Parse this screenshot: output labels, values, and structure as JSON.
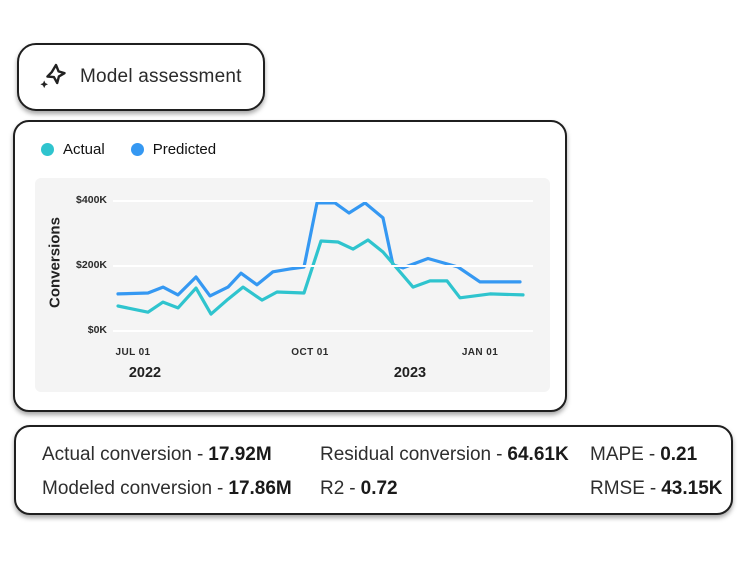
{
  "header": {
    "title": "Model assessment",
    "icon": "sparkle-icon"
  },
  "chart_card": {
    "legend": [
      {
        "label": "Actual",
        "color": "#2FC4CE"
      },
      {
        "label": "Predicted",
        "color": "#3598F2"
      }
    ]
  },
  "chart_data": {
    "type": "line",
    "title": "Model assessment",
    "xlabel": "",
    "ylabel": "Conversions",
    "ylim_k": [
      0,
      470
    ],
    "grid": "horizontal",
    "legend_position": "top-left",
    "y_ticks": [
      {
        "label": "$0K",
        "value": 0
      },
      {
        "label": "$200K",
        "value": 200
      },
      {
        "label": "$400K",
        "value": 400
      }
    ],
    "x_ticks": [
      {
        "label": "JUL 01",
        "x": 98
      },
      {
        "label": "OCT 01",
        "x": 275
      },
      {
        "label": "JAN 01",
        "x": 445
      }
    ],
    "year_labels": [
      {
        "label": "2022",
        "x": 110
      },
      {
        "label": "2023",
        "x": 375
      }
    ],
    "x_unit": "px-weekly-from-late-jun-2022",
    "y_unit": "conversions-in-$K",
    "series": [
      {
        "name": "Predicted",
        "color": "#3598F2",
        "points": [
          [
            83,
            114
          ],
          [
            113,
            117
          ],
          [
            128,
            135
          ],
          [
            143,
            111
          ],
          [
            161,
            166
          ],
          [
            175,
            108
          ],
          [
            193,
            135
          ],
          [
            206,
            178
          ],
          [
            222,
            142
          ],
          [
            238,
            182
          ],
          [
            255,
            191
          ],
          [
            269,
            197
          ],
          [
            282,
            394
          ],
          [
            300,
            394
          ],
          [
            314,
            363
          ],
          [
            330,
            394
          ],
          [
            348,
            348
          ],
          [
            358,
            203
          ],
          [
            368,
            194
          ],
          [
            393,
            223
          ],
          [
            423,
            197
          ],
          [
            445,
            151
          ],
          [
            485,
            151
          ]
        ]
      },
      {
        "name": "Actual",
        "color": "#2FC4CE",
        "points": [
          [
            83,
            77
          ],
          [
            113,
            58
          ],
          [
            128,
            89
          ],
          [
            143,
            71
          ],
          [
            161,
            132
          ],
          [
            176,
            52
          ],
          [
            193,
            98
          ],
          [
            208,
            135
          ],
          [
            227,
            95
          ],
          [
            242,
            120
          ],
          [
            269,
            117
          ],
          [
            286,
            277
          ],
          [
            303,
            274
          ],
          [
            318,
            252
          ],
          [
            333,
            280
          ],
          [
            348,
            243
          ],
          [
            378,
            135
          ],
          [
            395,
            154
          ],
          [
            412,
            154
          ],
          [
            425,
            102
          ],
          [
            455,
            114
          ],
          [
            488,
            111
          ]
        ]
      }
    ]
  },
  "metrics": {
    "sep": "-",
    "items": [
      {
        "label": "Actual conversion",
        "value": "17.92M"
      },
      {
        "label": "Modeled conversion",
        "value": "17.86M"
      },
      {
        "label": "Residual conversion",
        "value": "64.61K"
      },
      {
        "label": "R2",
        "value": "0.72"
      },
      {
        "label": "MAPE",
        "value": "0.21"
      },
      {
        "label": "RMSE",
        "value": "43.15K"
      }
    ]
  }
}
